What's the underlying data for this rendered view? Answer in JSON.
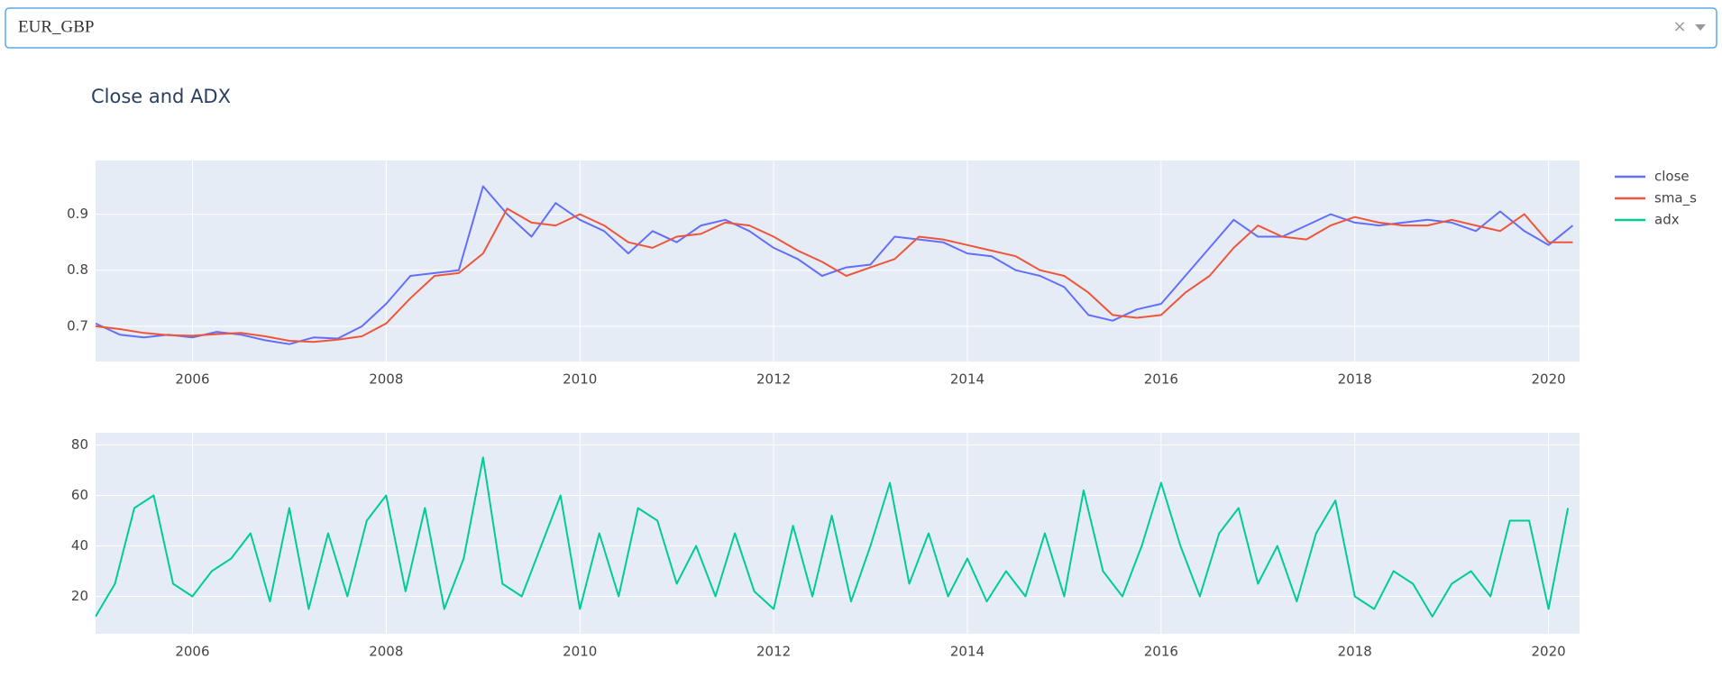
{
  "dropdown": {
    "value": "EUR_GBP"
  },
  "chart_data": [
    {
      "type": "line",
      "title": "Close and ADX",
      "x": [
        2005.0,
        2005.25,
        2005.5,
        2005.75,
        2006.0,
        2006.25,
        2006.5,
        2006.75,
        2007.0,
        2007.25,
        2007.5,
        2007.75,
        2008.0,
        2008.25,
        2008.5,
        2008.75,
        2009.0,
        2009.25,
        2009.5,
        2009.75,
        2010.0,
        2010.25,
        2010.5,
        2010.75,
        2011.0,
        2011.25,
        2011.5,
        2011.75,
        2012.0,
        2012.25,
        2012.5,
        2012.75,
        2013.0,
        2013.25,
        2013.5,
        2013.75,
        2014.0,
        2014.25,
        2014.5,
        2014.75,
        2015.0,
        2015.25,
        2015.5,
        2015.75,
        2016.0,
        2016.25,
        2016.5,
        2016.75,
        2017.0,
        2017.25,
        2017.5,
        2017.75,
        2018.0,
        2018.25,
        2018.5,
        2018.75,
        2019.0,
        2019.25,
        2019.5,
        2019.75,
        2020.0,
        2020.25
      ],
      "series": [
        {
          "name": "close",
          "color": "#636efa",
          "values": [
            0.705,
            0.685,
            0.68,
            0.685,
            0.68,
            0.69,
            0.685,
            0.675,
            0.668,
            0.68,
            0.678,
            0.7,
            0.74,
            0.79,
            0.795,
            0.8,
            0.95,
            0.9,
            0.86,
            0.92,
            0.89,
            0.87,
            0.83,
            0.87,
            0.85,
            0.88,
            0.89,
            0.87,
            0.84,
            0.82,
            0.79,
            0.805,
            0.81,
            0.86,
            0.855,
            0.85,
            0.83,
            0.825,
            0.8,
            0.79,
            0.77,
            0.72,
            0.71,
            0.73,
            0.74,
            0.79,
            0.84,
            0.89,
            0.86,
            0.86,
            0.88,
            0.9,
            0.885,
            0.88,
            0.885,
            0.89,
            0.885,
            0.87,
            0.905,
            0.87,
            0.845,
            0.88
          ]
        },
        {
          "name": "sma_s",
          "color": "#ef553b",
          "values": [
            0.7,
            0.695,
            0.688,
            0.684,
            0.683,
            0.686,
            0.688,
            0.682,
            0.674,
            0.672,
            0.676,
            0.682,
            0.705,
            0.75,
            0.79,
            0.795,
            0.83,
            0.91,
            0.885,
            0.88,
            0.9,
            0.88,
            0.85,
            0.84,
            0.86,
            0.865,
            0.885,
            0.88,
            0.86,
            0.835,
            0.815,
            0.79,
            0.805,
            0.82,
            0.86,
            0.855,
            0.845,
            0.835,
            0.825,
            0.8,
            0.79,
            0.76,
            0.72,
            0.715,
            0.72,
            0.76,
            0.79,
            0.84,
            0.88,
            0.86,
            0.855,
            0.88,
            0.895,
            0.885,
            0.88,
            0.88,
            0.89,
            0.88,
            0.87,
            0.9,
            0.85,
            0.85
          ]
        }
      ],
      "xlim": [
        2005.0,
        2020.32
      ],
      "xticks": [
        2006,
        2008,
        2010,
        2012,
        2014,
        2016,
        2018,
        2020
      ],
      "ylim": [
        0.637,
        0.996
      ],
      "yticks": [
        0.7,
        0.8,
        0.9
      ],
      "grid": true,
      "legend": "top-right"
    },
    {
      "type": "line",
      "x": [
        2005.0,
        2005.2,
        2005.4,
        2005.6,
        2005.8,
        2006.0,
        2006.2,
        2006.4,
        2006.6,
        2006.8,
        2007.0,
        2007.2,
        2007.4,
        2007.6,
        2007.8,
        2008.0,
        2008.2,
        2008.4,
        2008.6,
        2008.8,
        2009.0,
        2009.2,
        2009.4,
        2009.6,
        2009.8,
        2010.0,
        2010.2,
        2010.4,
        2010.6,
        2010.8,
        2011.0,
        2011.2,
        2011.4,
        2011.6,
        2011.8,
        2012.0,
        2012.2,
        2012.4,
        2012.6,
        2012.8,
        2013.0,
        2013.2,
        2013.4,
        2013.6,
        2013.8,
        2014.0,
        2014.2,
        2014.4,
        2014.6,
        2014.8,
        2015.0,
        2015.2,
        2015.4,
        2015.6,
        2015.8,
        2016.0,
        2016.2,
        2016.4,
        2016.6,
        2016.8,
        2017.0,
        2017.2,
        2017.4,
        2017.6,
        2017.8,
        2018.0,
        2018.2,
        2018.4,
        2018.6,
        2018.8,
        2019.0,
        2019.2,
        2019.4,
        2019.6,
        2019.8,
        2020.0,
        2020.2
      ],
      "series": [
        {
          "name": "adx",
          "color": "#00cc96",
          "values": [
            12,
            25,
            55,
            60,
            25,
            20,
            30,
            35,
            45,
            18,
            55,
            15,
            45,
            20,
            50,
            60,
            22,
            55,
            15,
            35,
            75,
            25,
            20,
            40,
            60,
            15,
            45,
            20,
            55,
            50,
            25,
            40,
            20,
            45,
            22,
            15,
            48,
            20,
            52,
            18,
            40,
            65,
            25,
            45,
            20,
            35,
            18,
            30,
            20,
            45,
            20,
            62,
            30,
            20,
            40,
            65,
            40,
            20,
            45,
            55,
            25,
            40,
            18,
            45,
            58,
            20,
            15,
            30,
            25,
            12,
            25,
            30,
            20,
            50,
            50,
            15,
            55
          ]
        }
      ],
      "xlim": [
        2005.0,
        2020.32
      ],
      "xticks": [
        2006,
        2008,
        2010,
        2012,
        2014,
        2016,
        2018,
        2020
      ],
      "ylim": [
        5.2,
        84.8
      ],
      "yticks": [
        20,
        40,
        60,
        80
      ],
      "grid": true
    }
  ]
}
